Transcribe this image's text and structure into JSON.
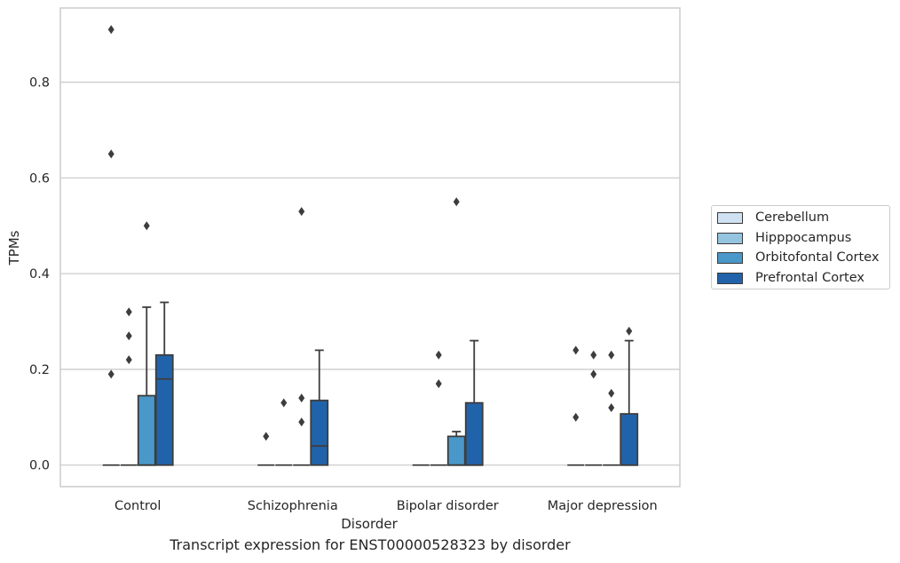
{
  "chart_data": {
    "type": "box",
    "caption": "Transcript expression for ENST00000528323 by disorder",
    "xlabel": "Disorder",
    "ylabel": "TPMs",
    "ylim": [
      -0.045,
      0.955
    ],
    "yticks": [
      0.0,
      0.2,
      0.4,
      0.6,
      0.8
    ],
    "ytick_labels": [
      "0.0",
      "0.2",
      "0.4",
      "0.6",
      "0.8"
    ],
    "grid": "horizontal",
    "legend_position": "right",
    "categories": [
      "Control",
      "Schizophrenia",
      "Bipolar disorder",
      "Major depression"
    ],
    "series": [
      {
        "name": "Cerebellum",
        "color": "#d0e1f2",
        "boxes": [
          {
            "q1": 0,
            "median": 0,
            "q3": 0,
            "whisker_low": 0,
            "whisker_high": 0,
            "outliers": [
              0.19,
              0.65,
              0.91
            ]
          },
          {
            "q1": 0,
            "median": 0,
            "q3": 0,
            "whisker_low": 0,
            "whisker_high": 0,
            "outliers": [
              0.06
            ]
          },
          {
            "q1": 0,
            "median": 0,
            "q3": 0,
            "whisker_low": 0,
            "whisker_high": 0,
            "outliers": []
          },
          {
            "q1": 0,
            "median": 0,
            "q3": 0,
            "whisker_low": 0,
            "whisker_high": 0,
            "outliers": [
              0.1,
              0.24
            ]
          }
        ]
      },
      {
        "name": "Hipppocampus",
        "color": "#94c4df",
        "boxes": [
          {
            "q1": 0,
            "median": 0,
            "q3": 0,
            "whisker_low": 0,
            "whisker_high": 0,
            "outliers": [
              0.22,
              0.27,
              0.32
            ]
          },
          {
            "q1": 0,
            "median": 0,
            "q3": 0,
            "whisker_low": 0,
            "whisker_high": 0,
            "outliers": [
              0.13
            ]
          },
          {
            "q1": 0,
            "median": 0,
            "q3": 0,
            "whisker_low": 0,
            "whisker_high": 0,
            "outliers": [
              0.17,
              0.23
            ]
          },
          {
            "q1": 0,
            "median": 0,
            "q3": 0,
            "whisker_low": 0,
            "whisker_high": 0,
            "outliers": [
              0.19,
              0.23
            ]
          }
        ]
      },
      {
        "name": "Orbitofontal Cortex",
        "color": "#4a98c9",
        "boxes": [
          {
            "q1": 0,
            "median": 0,
            "q3": 0.145,
            "whisker_low": 0,
            "whisker_high": 0.33,
            "outliers": [
              0.5
            ]
          },
          {
            "q1": 0,
            "median": 0,
            "q3": 0,
            "whisker_low": 0,
            "whisker_high": 0,
            "outliers": [
              0.09,
              0.14,
              0.53
            ]
          },
          {
            "q1": 0,
            "median": 0,
            "q3": 0.06,
            "whisker_low": 0,
            "whisker_high": 0.07,
            "outliers": [
              0.55
            ]
          },
          {
            "q1": 0,
            "median": 0,
            "q3": 0,
            "whisker_low": 0,
            "whisker_high": 0,
            "outliers": [
              0.12,
              0.15,
              0.23
            ]
          }
        ]
      },
      {
        "name": "Prefrontal Cortex",
        "color": "#2163aa",
        "boxes": [
          {
            "q1": 0,
            "median": 0.18,
            "q3": 0.23,
            "whisker_low": 0,
            "whisker_high": 0.34,
            "outliers": []
          },
          {
            "q1": 0,
            "median": 0.04,
            "q3": 0.135,
            "whisker_low": 0,
            "whisker_high": 0.24,
            "outliers": []
          },
          {
            "q1": 0,
            "median": 0,
            "q3": 0.13,
            "whisker_low": 0,
            "whisker_high": 0.26,
            "outliers": []
          },
          {
            "q1": 0,
            "median": 0,
            "q3": 0.107,
            "whisker_low": 0,
            "whisker_high": 0.26,
            "outliers": [
              0.28
            ]
          }
        ]
      }
    ]
  }
}
